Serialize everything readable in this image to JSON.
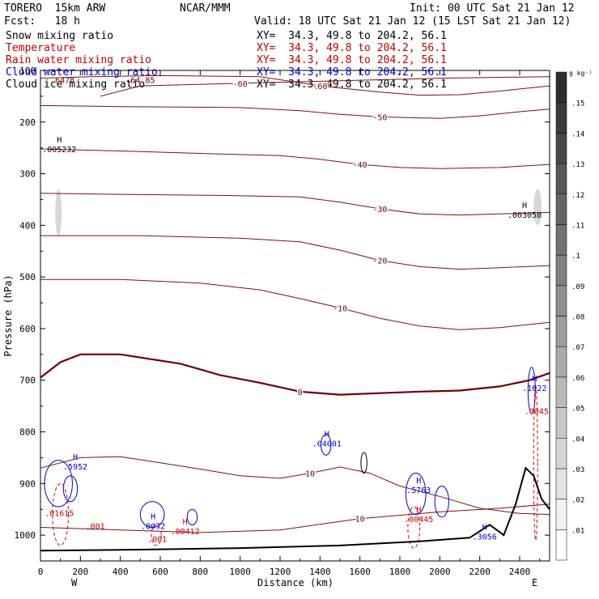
{
  "header": {
    "model": "TORERO  15km ARW",
    "center": "NCAR/MMM",
    "init": "Init: 00 UTC Sat 21 Jan 12",
    "fcst": "Fcst:   18 h",
    "valid": "Valid: 18 UTC Sat 21 Jan 12 (15 LST Sat 21 Jan 12)",
    "fields": [
      {
        "name": "Snow mixing ratio",
        "xy": "XY=  34.3, 49.8 to 204.2, 56.1",
        "color": "#000000"
      },
      {
        "name": "Temperature",
        "xy": "XY=  34.3, 49.8 to 204.2, 56.1",
        "color": "#c00000"
      },
      {
        "name": "Rain water mixing ratio",
        "xy": "XY=  34.3, 49.8 to 204.2, 56.1",
        "color": "#c00000"
      },
      {
        "name": "Cloud water mixing ratio",
        "xy": "XY=  34.3, 49.8 to 204.2, 56.1",
        "color": "#0000cc"
      },
      {
        "name": "Cloud ice mixing ratio",
        "xy": "XY=  34.3, 49.8 to 204.2, 56.1",
        "color": "#000000"
      }
    ]
  },
  "chart_data": {
    "type": "contour cross-section",
    "xlabel": "Distance (km)",
    "ylabel": "Pressure (hPa)",
    "xlim": [
      0,
      2550
    ],
    "ylim": [
      1050,
      100
    ],
    "x_ticks": [
      0,
      200,
      400,
      600,
      800,
      1000,
      1200,
      1400,
      1600,
      1800,
      2000,
      2200,
      2400
    ],
    "y_ticks": [
      200,
      300,
      400,
      500,
      600,
      700,
      800,
      900,
      1000
    ],
    "y_top_label": "100",
    "endpoint_labels": {
      "left": "W",
      "right": "E"
    },
    "colorbar": {
      "unit": "g kg⁻¹",
      "levels": [
        0.01,
        0.02,
        0.03,
        0.04,
        0.05,
        0.06,
        0.07,
        0.08,
        0.09,
        0.1,
        0.11,
        0.12,
        0.13,
        0.14,
        0.15
      ],
      "labels": [
        ".01",
        ".02",
        ".03",
        ".04",
        ".05",
        ".06",
        ".07",
        ".08",
        ".09",
        ".1",
        ".11",
        ".12",
        ".13",
        ".14",
        ".15"
      ]
    },
    "temperature_isotherms": [
      {
        "level": "-60",
        "points": [
          [
            300,
            150
          ],
          [
            500,
            130
          ],
          [
            1000,
            125
          ],
          [
            2000,
            115
          ],
          [
            2550,
            112
          ]
        ]
      },
      {
        "level": "-60",
        "points": [
          [
            0,
            115
          ],
          [
            250,
            112
          ],
          [
            600,
            110
          ],
          [
            1100,
            112
          ],
          [
            1200,
            118
          ],
          [
            1400,
            130
          ],
          [
            1700,
            142
          ],
          [
            1900,
            148
          ],
          [
            2100,
            147
          ],
          [
            2300,
            140
          ],
          [
            2550,
            130
          ]
        ]
      },
      {
        "level": "-50",
        "points": [
          [
            0,
            168
          ],
          [
            400,
            170
          ],
          [
            1000,
            172
          ],
          [
            1300,
            178
          ],
          [
            1500,
            185
          ],
          [
            1700,
            190
          ],
          [
            2000,
            193
          ],
          [
            2200,
            188
          ],
          [
            2400,
            180
          ],
          [
            2550,
            175
          ]
        ]
      },
      {
        "level": "-40",
        "points": [
          [
            0,
            252
          ],
          [
            400,
            256
          ],
          [
            900,
            262
          ],
          [
            1200,
            265
          ],
          [
            1400,
            272
          ],
          [
            1600,
            282
          ],
          [
            1800,
            288
          ],
          [
            2000,
            290
          ],
          [
            2300,
            288
          ],
          [
            2550,
            282
          ]
        ]
      },
      {
        "level": "-30",
        "points": [
          [
            0,
            338
          ],
          [
            400,
            340
          ],
          [
            900,
            342
          ],
          [
            1300,
            345
          ],
          [
            1500,
            355
          ],
          [
            1700,
            368
          ],
          [
            1900,
            378
          ],
          [
            2100,
            380
          ],
          [
            2300,
            378
          ],
          [
            2550,
            375
          ]
        ]
      },
      {
        "level": "-20",
        "points": [
          [
            0,
            420
          ],
          [
            500,
            420
          ],
          [
            1000,
            425
          ],
          [
            1300,
            432
          ],
          [
            1500,
            448
          ],
          [
            1700,
            468
          ],
          [
            1900,
            480
          ],
          [
            2100,
            485
          ],
          [
            2300,
            482
          ],
          [
            2550,
            478
          ]
        ]
      },
      {
        "level": "-10",
        "points": [
          [
            0,
            505
          ],
          [
            400,
            505
          ],
          [
            800,
            512
          ],
          [
            1100,
            525
          ],
          [
            1300,
            542
          ],
          [
            1500,
            560
          ],
          [
            1700,
            580
          ],
          [
            1900,
            595
          ],
          [
            2100,
            602
          ],
          [
            2300,
            598
          ],
          [
            2550,
            588
          ]
        ]
      },
      {
        "level": "0",
        "points": [
          [
            0,
            695
          ],
          [
            100,
            665
          ],
          [
            200,
            650
          ],
          [
            400,
            650
          ],
          [
            700,
            668
          ],
          [
            900,
            690
          ],
          [
            1100,
            705
          ],
          [
            1300,
            722
          ],
          [
            1500,
            728
          ],
          [
            1700,
            725
          ],
          [
            1900,
            722
          ],
          [
            2100,
            720
          ],
          [
            2300,
            712
          ],
          [
            2450,
            700
          ],
          [
            2550,
            686
          ]
        ]
      },
      {
        "level": "10",
        "points": [
          [
            0,
            870
          ],
          [
            200,
            850
          ],
          [
            400,
            848
          ],
          [
            600,
            860
          ],
          [
            800,
            872
          ],
          [
            1000,
            885
          ],
          [
            1200,
            890
          ],
          [
            1350,
            880
          ],
          [
            1500,
            868
          ],
          [
            1650,
            880
          ],
          [
            1800,
            905
          ],
          [
            2000,
            925
          ],
          [
            2200,
            948
          ],
          [
            2400,
            958
          ],
          [
            2550,
            960
          ]
        ]
      },
      {
        "level": "10",
        "points": [
          [
            0,
            985
          ],
          [
            400,
            990
          ],
          [
            800,
            995
          ],
          [
            1200,
            990
          ],
          [
            1600,
            968
          ],
          [
            2000,
            955
          ],
          [
            2300,
            948
          ],
          [
            2550,
            940
          ]
        ]
      }
    ],
    "maxima_labels": [
      {
        "field": "snow",
        "label": "H",
        "value": ".005232",
        "x": 70,
        "p": 255
      },
      {
        "field": "snow",
        "label": "H",
        "value": ".003058",
        "x": 2400,
        "p": 382
      },
      {
        "field": "cloud_water",
        "label": "H",
        "value": ".5952",
        "x": 150,
        "p": 870
      },
      {
        "field": "rain",
        "label": "",
        "value": ".01615",
        "x": 70,
        "p": 960
      },
      {
        "field": "rain",
        "label": "",
        "value": ".001",
        "x": 250,
        "p": 985
      },
      {
        "field": "cloud_water",
        "label": "H",
        "value": ".0072",
        "x": 540,
        "p": 985
      },
      {
        "field": "rain",
        "label": "H",
        "value": ".00412",
        "x": 700,
        "p": 995
      },
      {
        "field": "rain",
        "label": "",
        "value": ".001",
        "x": 560,
        "p": 1010
      },
      {
        "field": "cloud_water",
        "label": "H",
        "value": ".04001",
        "x": 1410,
        "p": 825
      },
      {
        "field": "cloud_water",
        "label": "H",
        "value": ".5763",
        "x": 1870,
        "p": 915
      },
      {
        "field": "rain",
        "label": "H",
        "value": ".00445",
        "x": 1870,
        "p": 972
      },
      {
        "field": "cloud_water",
        "label": "H",
        "value": ".3056",
        "x": 2200,
        "p": 1005
      },
      {
        "field": "cloud_water",
        "label": "H",
        "value": ".1622",
        "x": 2450,
        "p": 718
      },
      {
        "field": "rain",
        "label": "",
        "value": ".0045",
        "x": 2460,
        "p": 762
      }
    ],
    "top_labels": [
      {
        "value": ".6478",
        "x": 110,
        "p": 118
      },
      {
        "value": "-64.85",
        "x": 500,
        "p": 118
      }
    ]
  }
}
